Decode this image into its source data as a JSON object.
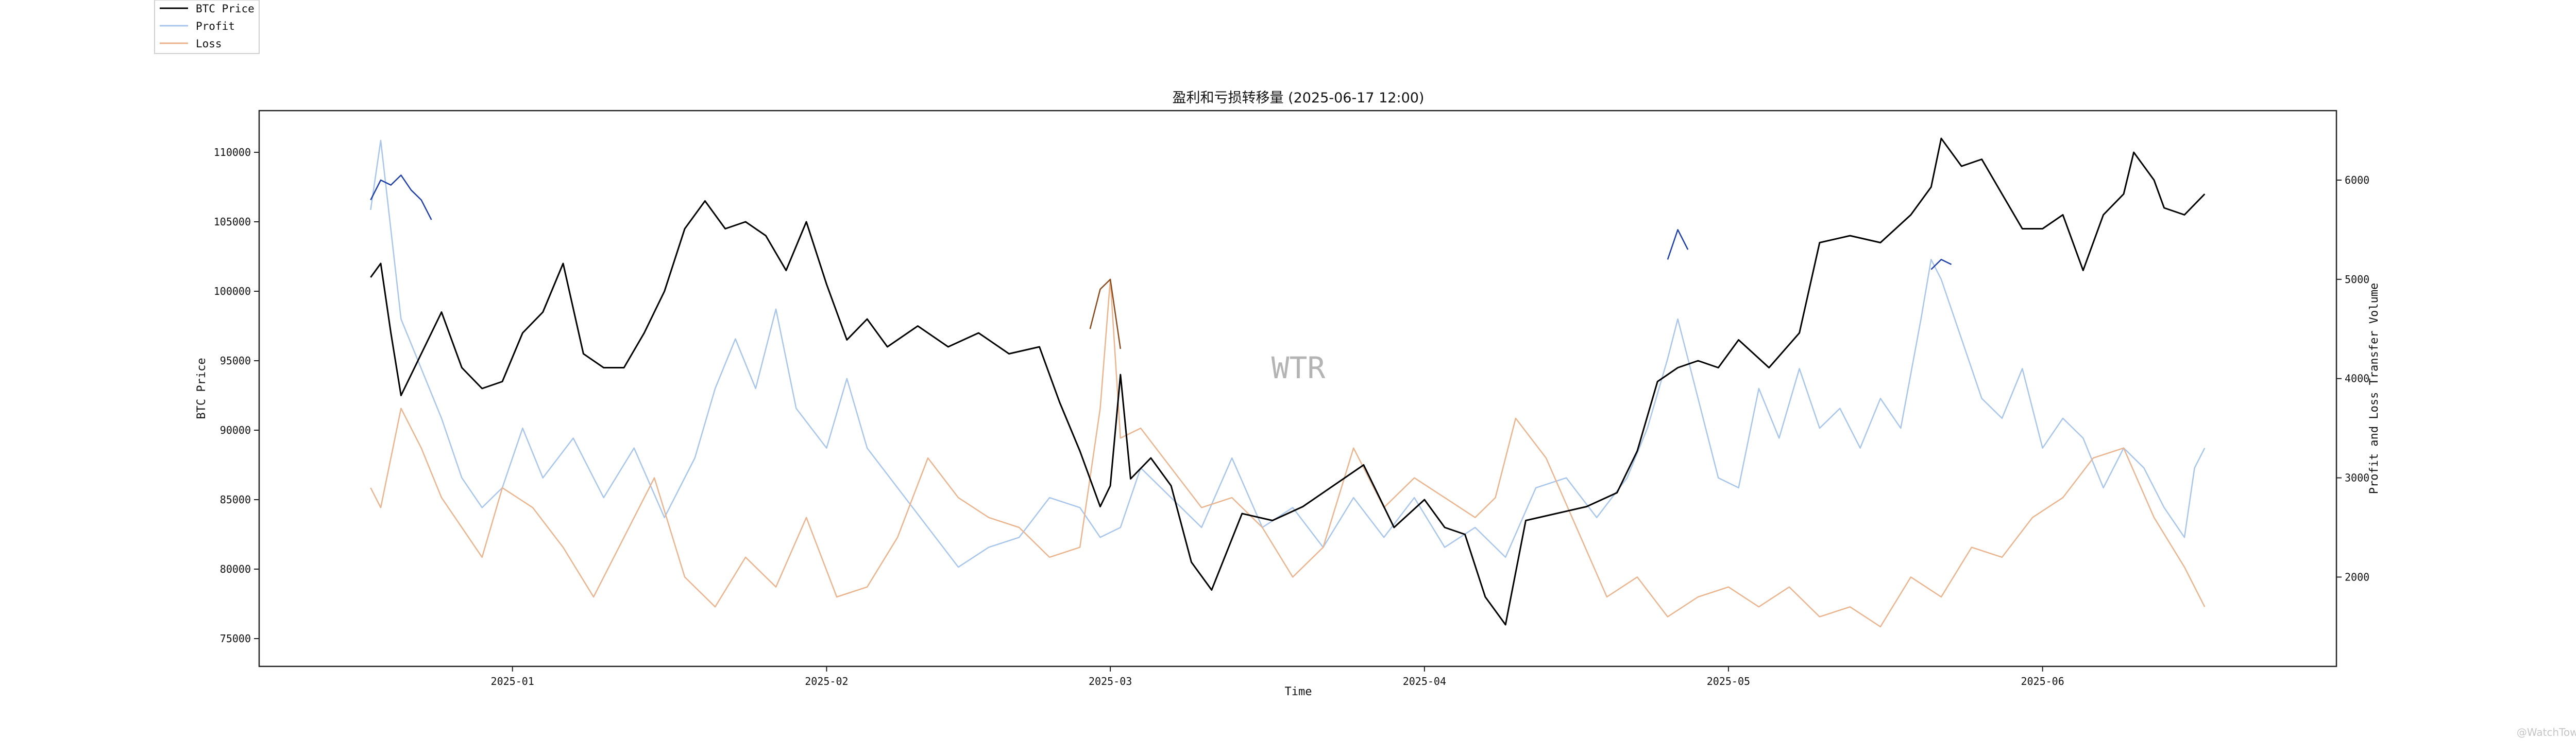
{
  "chart_data": {
    "type": "line",
    "title": "盈利和亏损转移量 (2025-06-17 12:00)",
    "xlabel": "Time",
    "ylabel_left": "BTC Price",
    "ylabel_right": "Profit and Loss Transfer Volume",
    "watermark": "WTR",
    "footer_mark": "@WatchTower",
    "x_ticks": [
      "2025-01",
      "2025-02",
      "2025-03",
      "2025-04",
      "2025-05",
      "2025-06"
    ],
    "y_left_ticks": [
      75000,
      80000,
      85000,
      90000,
      95000,
      100000,
      105000,
      110000
    ],
    "y_right_ticks": [
      2000,
      3000,
      4000,
      5000,
      6000
    ],
    "y_left_lim": [
      73000,
      113000
    ],
    "y_right_lim": [
      1100,
      6700
    ],
    "x_range": [
      "2024-12-07",
      "2025-06-30"
    ],
    "legend": {
      "placement": "top-left, outside plot",
      "entries": [
        {
          "label": "BTC Price",
          "color": "#000000"
        },
        {
          "label": "Profit",
          "color": "#a8c6ec"
        },
        {
          "label": "Loss",
          "color": "#eab58e"
        }
      ]
    },
    "series": [
      {
        "name": "BTC Price",
        "axis": "left",
        "color": "#000000",
        "x": [
          "2024-12-18",
          "2024-12-19",
          "2024-12-20",
          "2024-12-21",
          "2024-12-23",
          "2024-12-25",
          "2024-12-27",
          "2024-12-29",
          "2024-12-31",
          "2025-01-02",
          "2025-01-04",
          "2025-01-06",
          "2025-01-08",
          "2025-01-10",
          "2025-01-12",
          "2025-01-14",
          "2025-01-16",
          "2025-01-18",
          "2025-01-20",
          "2025-01-22",
          "2025-01-24",
          "2025-01-26",
          "2025-01-28",
          "2025-01-30",
          "2025-02-01",
          "2025-02-03",
          "2025-02-05",
          "2025-02-07",
          "2025-02-10",
          "2025-02-13",
          "2025-02-16",
          "2025-02-19",
          "2025-02-22",
          "2025-02-24",
          "2025-02-26",
          "2025-02-28",
          "2025-03-01",
          "2025-03-02",
          "2025-03-03",
          "2025-03-05",
          "2025-03-07",
          "2025-03-09",
          "2025-03-11",
          "2025-03-14",
          "2025-03-17",
          "2025-03-20",
          "2025-03-23",
          "2025-03-26",
          "2025-03-29",
          "2025-04-01",
          "2025-04-03",
          "2025-04-05",
          "2025-04-07",
          "2025-04-09",
          "2025-04-11",
          "2025-04-14",
          "2025-04-17",
          "2025-04-20",
          "2025-04-22",
          "2025-04-24",
          "2025-04-26",
          "2025-04-28",
          "2025-04-30",
          "2025-05-02",
          "2025-05-05",
          "2025-05-08",
          "2025-05-10",
          "2025-05-13",
          "2025-05-16",
          "2025-05-19",
          "2025-05-21",
          "2025-05-22",
          "2025-05-24",
          "2025-05-26",
          "2025-05-28",
          "2025-05-30",
          "2025-06-01",
          "2025-06-03",
          "2025-06-05",
          "2025-06-07",
          "2025-06-09",
          "2025-06-10",
          "2025-06-12",
          "2025-06-13",
          "2025-06-15",
          "2025-06-17"
        ],
        "values": [
          101000,
          102000,
          97000,
          92500,
          95500,
          98500,
          94500,
          93000,
          93500,
          97000,
          98500,
          102000,
          95500,
          94500,
          94500,
          97000,
          100000,
          104500,
          106500,
          104500,
          105000,
          104000,
          101500,
          105000,
          100500,
          96500,
          98000,
          96000,
          97500,
          96000,
          97000,
          95500,
          96000,
          92000,
          88500,
          84500,
          86000,
          94000,
          86500,
          88000,
          86000,
          80500,
          78500,
          84000,
          83500,
          84500,
          86000,
          87500,
          83000,
          85000,
          83000,
          82500,
          78000,
          76000,
          83500,
          84000,
          84500,
          85500,
          88500,
          93500,
          94500,
          95000,
          94500,
          96500,
          94500,
          97000,
          103500,
          104000,
          103500,
          105500,
          107500,
          111000,
          109000,
          109500,
          107000,
          104500,
          104500,
          105500,
          101500,
          105500,
          107000,
          110000,
          108000,
          106000,
          105500,
          107000
        ]
      },
      {
        "name": "Profit",
        "axis": "right",
        "color": "#a8c6ec",
        "x": [
          "2024-12-18",
          "2024-12-19",
          "2024-12-20",
          "2024-12-21",
          "2024-12-23",
          "2024-12-25",
          "2024-12-27",
          "2024-12-29",
          "2024-12-31",
          "2025-01-02",
          "2025-01-04",
          "2025-01-07",
          "2025-01-10",
          "2025-01-13",
          "2025-01-16",
          "2025-01-19",
          "2025-01-21",
          "2025-01-23",
          "2025-01-25",
          "2025-01-27",
          "2025-01-29",
          "2025-02-01",
          "2025-02-03",
          "2025-02-05",
          "2025-02-08",
          "2025-02-11",
          "2025-02-14",
          "2025-02-17",
          "2025-02-20",
          "2025-02-23",
          "2025-02-26",
          "2025-02-28",
          "2025-03-02",
          "2025-03-04",
          "2025-03-07",
          "2025-03-10",
          "2025-03-13",
          "2025-03-16",
          "2025-03-19",
          "2025-03-22",
          "2025-03-25",
          "2025-03-28",
          "2025-03-31",
          "2025-04-03",
          "2025-04-06",
          "2025-04-09",
          "2025-04-12",
          "2025-04-15",
          "2025-04-18",
          "2025-04-21",
          "2025-04-23",
          "2025-04-25",
          "2025-04-26",
          "2025-04-28",
          "2025-04-30",
          "2025-05-02",
          "2025-05-04",
          "2025-05-06",
          "2025-05-08",
          "2025-05-10",
          "2025-05-12",
          "2025-05-14",
          "2025-05-16",
          "2025-05-18",
          "2025-05-20",
          "2025-05-21",
          "2025-05-22",
          "2025-05-24",
          "2025-05-26",
          "2025-05-28",
          "2025-05-30",
          "2025-06-01",
          "2025-06-03",
          "2025-06-05",
          "2025-06-07",
          "2025-06-09",
          "2025-06-11",
          "2025-06-13",
          "2025-06-15",
          "2025-06-16",
          "2025-06-17"
        ],
        "values": [
          5700,
          6400,
          5500,
          4600,
          4100,
          3600,
          3000,
          2700,
          2900,
          3500,
          3000,
          3400,
          2800,
          3300,
          2600,
          3200,
          3900,
          4400,
          3900,
          4700,
          3700,
          3300,
          4000,
          3300,
          2900,
          2500,
          2100,
          2300,
          2400,
          2800,
          2700,
          2400,
          2500,
          3100,
          2800,
          2500,
          3200,
          2500,
          2700,
          2300,
          2800,
          2400,
          2800,
          2300,
          2500,
          2200,
          2900,
          3000,
          2600,
          3000,
          3500,
          4200,
          4600,
          3800,
          3000,
          2900,
          3900,
          3400,
          4100,
          3500,
          3700,
          3300,
          3800,
          3500,
          4600,
          5200,
          5000,
          4400,
          3800,
          3600,
          4100,
          3300,
          3600,
          3400,
          2900,
          3300,
          3100,
          2700,
          2400,
          3100,
          3300
        ]
      },
      {
        "name": "Loss",
        "axis": "right",
        "color": "#eab58e",
        "x": [
          "2024-12-18",
          "2024-12-19",
          "2024-12-21",
          "2024-12-23",
          "2024-12-25",
          "2024-12-27",
          "2024-12-29",
          "2024-12-31",
          "2025-01-03",
          "2025-01-06",
          "2025-01-09",
          "2025-01-12",
          "2025-01-15",
          "2025-01-18",
          "2025-01-21",
          "2025-01-24",
          "2025-01-27",
          "2025-01-30",
          "2025-02-02",
          "2025-02-05",
          "2025-02-08",
          "2025-02-11",
          "2025-02-14",
          "2025-02-17",
          "2025-02-20",
          "2025-02-23",
          "2025-02-26",
          "2025-02-28",
          "2025-03-01",
          "2025-03-02",
          "2025-03-04",
          "2025-03-07",
          "2025-03-10",
          "2025-03-13",
          "2025-03-16",
          "2025-03-19",
          "2025-03-22",
          "2025-03-25",
          "2025-03-28",
          "2025-03-31",
          "2025-04-03",
          "2025-04-06",
          "2025-04-08",
          "2025-04-10",
          "2025-04-13",
          "2025-04-16",
          "2025-04-19",
          "2025-04-22",
          "2025-04-25",
          "2025-04-28",
          "2025-05-01",
          "2025-05-04",
          "2025-05-07",
          "2025-05-10",
          "2025-05-13",
          "2025-05-16",
          "2025-05-19",
          "2025-05-22",
          "2025-05-25",
          "2025-05-28",
          "2025-05-31",
          "2025-06-03",
          "2025-06-06",
          "2025-06-09",
          "2025-06-12",
          "2025-06-15",
          "2025-06-17"
        ],
        "values": [
          2900,
          2700,
          3700,
          3300,
          2800,
          2500,
          2200,
          2900,
          2700,
          2300,
          1800,
          2400,
          3000,
          2000,
          1700,
          2200,
          1900,
          2600,
          1800,
          1900,
          2400,
          3200,
          2800,
          2600,
          2500,
          2200,
          2300,
          3700,
          5000,
          3400,
          3500,
          3100,
          2700,
          2800,
          2500,
          2000,
          2300,
          3300,
          2700,
          3000,
          2800,
          2600,
          2800,
          3600,
          3200,
          2500,
          1800,
          2000,
          1600,
          1800,
          1900,
          1700,
          1900,
          1600,
          1700,
          1500,
          2000,
          1800,
          2300,
          2200,
          2600,
          2800,
          3200,
          3300,
          2600,
          2100,
          1700
        ]
      },
      {
        "name": "",
        "axis": "right",
        "color": "#1f3fa8",
        "x": [
          "2024-12-18",
          "2024-12-19",
          "2024-12-20",
          "2024-12-21",
          "2024-12-22",
          "2024-12-23",
          "2024-12-24"
        ],
        "values": [
          5800,
          6000,
          5950,
          6050,
          5900,
          5800,
          5600
        ]
      },
      {
        "name": "",
        "axis": "right",
        "color": "#1f3fa8",
        "x": [
          "2025-04-25",
          "2025-04-26",
          "2025-04-27"
        ],
        "values": [
          5200,
          5500,
          5300
        ]
      },
      {
        "name": "",
        "axis": "right",
        "color": "#1f3fa8",
        "x": [
          "2025-05-21",
          "2025-05-22",
          "2025-05-23"
        ],
        "values": [
          5100,
          5200,
          5150
        ]
      },
      {
        "name": "",
        "axis": "right",
        "color": "#8a4a1c",
        "x": [
          "2025-02-27",
          "2025-02-28",
          "2025-03-01",
          "2025-03-02"
        ],
        "values": [
          4500,
          4900,
          5000,
          4300
        ]
      }
    ]
  }
}
